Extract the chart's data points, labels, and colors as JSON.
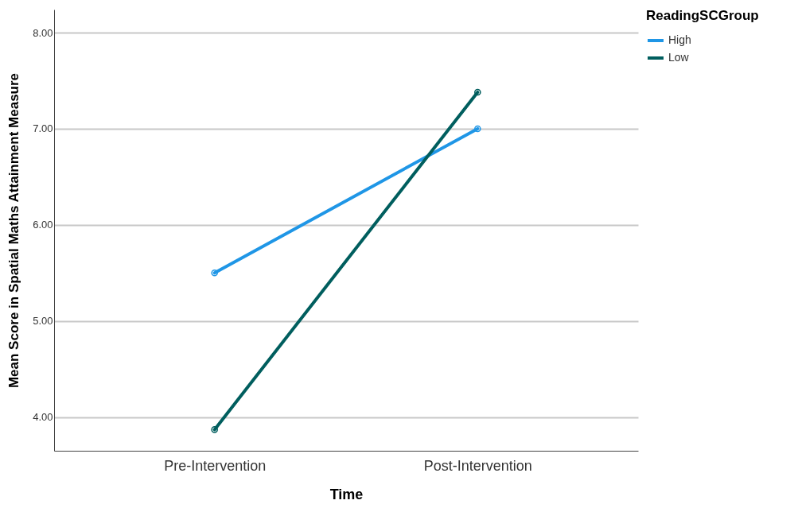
{
  "chart_data": {
    "type": "line",
    "xlabel": "Time",
    "ylabel": "Mean Score in Spatial Maths Attainment Measure",
    "legend_title": "ReadingSCGroup",
    "categories": [
      "Pre-Intervention",
      "Post-Intervention"
    ],
    "series": [
      {
        "name": "High",
        "color": "#1f96e6",
        "values": [
          5.5,
          7.0
        ]
      },
      {
        "name": "Low",
        "color": "#005e5e",
        "values": [
          3.87,
          7.38
        ]
      }
    ],
    "ylim": [
      3.65,
      8.24
    ],
    "yticks": [
      {
        "value": 4,
        "label": "4.00"
      },
      {
        "value": 5,
        "label": "5.00"
      },
      {
        "value": 6,
        "label": "6.00"
      },
      {
        "value": 7,
        "label": "7.00"
      },
      {
        "value": 8,
        "label": "8.00"
      }
    ],
    "grid": "y",
    "legend": "top right",
    "marker": "circle",
    "line_style": "solid"
  }
}
